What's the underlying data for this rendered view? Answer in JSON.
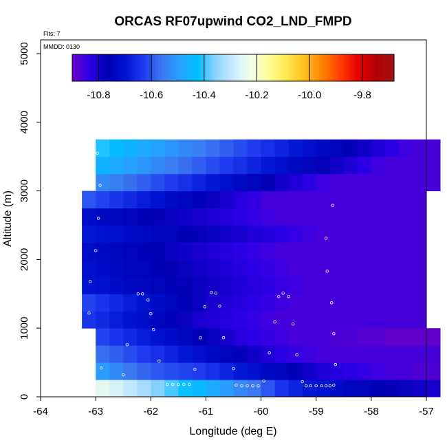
{
  "chart_data": {
    "type": "heatmap",
    "title": "ORCAS RF07upwind CO2_LND_FMPD",
    "annotations": {
      "flights": "Flts: 7",
      "date": "MMDD: 0130"
    },
    "xlabel": "Longitude (deg E)",
    "ylabel": "Altitude (m)",
    "xlim": [
      -64,
      -57
    ],
    "ylim": [
      0,
      5200
    ],
    "x_ticks": [
      -64,
      -63,
      -62,
      -61,
      -60,
      -59,
      -58,
      -57
    ],
    "x_tick_labels": [
      "-64",
      "-63",
      "-62",
      "-61",
      "-60",
      "-59",
      "-58",
      "-57"
    ],
    "y_ticks": [
      0,
      1000,
      2000,
      3000,
      4000,
      5000
    ],
    "y_tick_labels": [
      "0",
      "1000",
      "2000",
      "3000",
      "4000",
      "5000"
    ],
    "colorbar": {
      "vmin": -10.9,
      "vmax": -9.68,
      "ticks": [
        -10.8,
        -10.6,
        -10.4,
        -10.2,
        -10.0,
        -9.8
      ],
      "tick_labels": [
        "-10.8",
        "-10.6",
        "-10.4",
        "-10.2",
        "-10.0",
        "-9.8"
      ],
      "colors": [
        "#6a00c8",
        "#2d00e6",
        "#0000b4",
        "#0014d2",
        "#1e3cf0",
        "#3c78f0",
        "#28a0ff",
        "#00beff",
        "#8cd2ff",
        "#c8ebff",
        "#f5ffe6",
        "#ffff96",
        "#ffe650",
        "#ffbe1e",
        "#ff8200",
        "#ff3c00",
        "#e60000",
        "#b40000",
        "#a01414"
      ]
    },
    "grid": {
      "x_start": -63.25,
      "x_step": 0.25,
      "y_start": 0,
      "y_step": 250,
      "row_x_ranges": [
        [
          -63.0,
          -62.5
        ],
        [
          -63.0,
          -62.5
        ],
        [
          -63.0,
          -62.5
        ],
        [
          -63.0,
          -62.5
        ],
        [
          -63.25,
          -62.5
        ],
        [
          -63.25,
          -62.5
        ],
        [
          -63.25,
          -62.5
        ],
        [
          -63.25,
          -62.5
        ],
        [
          -63.25,
          -62.5
        ],
        [
          -63.25,
          -62.5
        ],
        [
          -63.25,
          -62.5
        ],
        [
          -63.25,
          -62.5
        ],
        [
          -63.0,
          -62.5
        ],
        [
          -63.0,
          -62.5
        ],
        [
          -63.0,
          -62.5
        ]
      ],
      "rows": [
        [
          -10.25,
          -10.27,
          -10.3,
          -10.33,
          -10.36,
          -10.39,
          -10.42,
          -10.44,
          -10.47,
          -10.5,
          -10.53,
          -10.56,
          -10.6,
          -10.64,
          -10.67,
          -10.69,
          -10.7,
          -10.72,
          -10.74,
          -10.75,
          -10.76,
          -10.77,
          -10.78,
          -10.79,
          -10.8
        ],
        [
          -10.5,
          -10.53,
          -10.56,
          -10.58,
          -10.6,
          -10.61,
          -10.62,
          -10.63,
          -10.65,
          -10.67,
          -10.69,
          -10.71,
          -10.73,
          -10.75,
          -10.77,
          -10.79,
          -10.81,
          -10.82,
          -10.83,
          -10.84,
          -10.85,
          -10.86,
          -10.86,
          -10.87,
          -10.87
        ],
        [
          -10.57,
          -10.59,
          -10.61,
          -10.63,
          -10.65,
          -10.67,
          -10.69,
          -10.71,
          -10.73,
          -10.75,
          -10.77,
          -10.79,
          -10.81,
          -10.83,
          -10.84,
          -10.85,
          -10.86,
          -10.86,
          -10.86,
          -10.86,
          -10.86,
          -10.86,
          -10.86,
          -10.86,
          -10.86
        ],
        [
          -10.62,
          -10.64,
          -10.66,
          -10.68,
          -10.7,
          -10.72,
          -10.74,
          -10.76,
          -10.78,
          -10.8,
          -10.82,
          -10.83,
          -10.84,
          -10.85,
          -10.86,
          -10.86,
          -10.86,
          -10.87,
          -10.87,
          -10.88,
          -10.88,
          -10.89,
          -10.89,
          -10.89,
          -10.89
        ],
        [
          -10.64,
          -10.66,
          -10.68,
          -10.7,
          -10.72,
          -10.74,
          -10.76,
          -10.78,
          -10.8,
          -10.81,
          -10.82,
          -10.83,
          -10.84,
          -10.85,
          -10.86,
          -10.86,
          -10.86,
          -10.86,
          -10.86,
          -10.86,
          -10.86,
          -10.86,
          -10.86,
          -10.86,
          -10.86
        ],
        [
          -10.62,
          -10.64,
          -10.66,
          -10.68,
          -10.7,
          -10.72,
          -10.74,
          -10.76,
          -10.78,
          -10.8,
          -10.81,
          -10.82,
          -10.83,
          -10.84,
          -10.85,
          -10.86,
          -10.86,
          -10.86,
          -10.86,
          -10.86,
          -10.86,
          -10.86,
          -10.86,
          -10.86,
          -10.86
        ],
        [
          -10.7,
          -10.71,
          -10.72,
          -10.73,
          -10.74,
          -10.75,
          -10.76,
          -10.77,
          -10.78,
          -10.79,
          -10.8,
          -10.81,
          -10.82,
          -10.83,
          -10.84,
          -10.85,
          -10.86,
          -10.86,
          -10.86,
          -10.86,
          -10.86,
          -10.86,
          -10.86,
          -10.86,
          -10.86
        ],
        [
          -10.71,
          -10.72,
          -10.73,
          -10.74,
          -10.75,
          -10.76,
          -10.77,
          -10.78,
          -10.79,
          -10.8,
          -10.81,
          -10.82,
          -10.83,
          -10.84,
          -10.85,
          -10.86,
          -10.86,
          -10.86,
          -10.86,
          -10.86,
          -10.86,
          -10.86,
          -10.86,
          -10.86,
          -10.86
        ],
        [
          -10.72,
          -10.73,
          -10.74,
          -10.75,
          -10.76,
          -10.77,
          -10.78,
          -10.79,
          -10.8,
          -10.81,
          -10.82,
          -10.83,
          -10.84,
          -10.85,
          -10.86,
          -10.86,
          -10.86,
          -10.86,
          -10.86,
          -10.86,
          -10.86,
          -10.86,
          -10.86,
          -10.86,
          -10.86
        ],
        [
          -10.69,
          -10.7,
          -10.71,
          -10.72,
          -10.73,
          -10.74,
          -10.75,
          -10.76,
          -10.77,
          -10.78,
          -10.79,
          -10.8,
          -10.81,
          -10.82,
          -10.83,
          -10.84,
          -10.85,
          -10.86,
          -10.86,
          -10.86,
          -10.86,
          -10.86,
          -10.86,
          -10.86,
          -10.86
        ],
        [
          -10.72,
          -10.73,
          -10.74,
          -10.75,
          -10.76,
          -10.77,
          -10.78,
          -10.79,
          -10.8,
          -10.81,
          -10.82,
          -10.83,
          -10.84,
          -10.85,
          -10.86,
          -10.86,
          -10.86,
          -10.86,
          -10.86,
          -10.86,
          -10.86,
          -10.86,
          -10.86,
          -10.86,
          -10.86
        ],
        [
          -10.6,
          -10.62,
          -10.64,
          -10.66,
          -10.68,
          -10.7,
          -10.72,
          -10.74,
          -10.76,
          -10.78,
          -10.8,
          -10.82,
          -10.84,
          -10.86,
          -10.86,
          -10.86,
          -10.86,
          -10.86,
          -10.86,
          -10.86,
          -10.86,
          -10.86,
          -10.86,
          -10.86,
          -10.86
        ],
        [
          -10.53,
          -10.55,
          -10.57,
          -10.59,
          -10.61,
          -10.63,
          -10.65,
          -10.67,
          -10.69,
          -10.71,
          -10.73,
          -10.75,
          -10.77,
          -10.79,
          -10.81,
          -10.83,
          -10.85,
          -10.86,
          -10.86,
          -10.86,
          -10.86,
          -10.86,
          -10.86,
          -10.86,
          -10.86
        ],
        [
          -10.45,
          -10.47,
          -10.49,
          -10.51,
          -10.53,
          -10.55,
          -10.57,
          -10.59,
          -10.61,
          -10.63,
          -10.65,
          -10.67,
          -10.69,
          -10.71,
          -10.73,
          -10.75,
          -10.77,
          -10.79,
          -10.81,
          -10.83,
          -10.85,
          -10.86,
          -10.86,
          -10.86,
          -10.86
        ],
        [
          -10.41,
          -10.43,
          -10.45,
          -10.47,
          -10.49,
          -10.51,
          -10.53,
          -10.55,
          -10.57,
          -10.59,
          -10.61,
          -10.63,
          -10.65,
          -10.67,
          -10.69,
          -10.71,
          -10.73,
          -10.75,
          -10.77,
          -10.79,
          -10.81,
          -10.83,
          -10.85,
          -10.86,
          -10.86
        ]
      ]
    },
    "sample_points": [
      [
        -62.97,
        3550
      ],
      [
        -62.92,
        3080
      ],
      [
        -62.95,
        2600
      ],
      [
        -63.0,
        2130
      ],
      [
        -63.1,
        1680
      ],
      [
        -63.12,
        1220
      ],
      [
        -63.08,
        770
      ],
      [
        -62.9,
        420
      ],
      [
        -62.5,
        320
      ],
      [
        -62.43,
        760
      ],
      [
        -62.23,
        1500
      ],
      [
        -62.15,
        1500
      ],
      [
        -62.05,
        1410
      ],
      [
        -62.0,
        1210
      ],
      [
        -61.95,
        980
      ],
      [
        -61.85,
        520
      ],
      [
        -61.7,
        180
      ],
      [
        -61.6,
        180
      ],
      [
        -61.5,
        180
      ],
      [
        -61.4,
        180
      ],
      [
        -61.3,
        180
      ],
      [
        -61.2,
        400
      ],
      [
        -61.1,
        860
      ],
      [
        -61.02,
        1310
      ],
      [
        -60.9,
        1520
      ],
      [
        -60.82,
        1510
      ],
      [
        -60.75,
        1320
      ],
      [
        -60.68,
        860
      ],
      [
        -60.5,
        410
      ],
      [
        -60.45,
        170
      ],
      [
        -60.35,
        160
      ],
      [
        -60.25,
        160
      ],
      [
        -60.15,
        160
      ],
      [
        -60.05,
        160
      ],
      [
        -59.95,
        230
      ],
      [
        -59.85,
        640
      ],
      [
        -59.75,
        1090
      ],
      [
        -59.68,
        1460
      ],
      [
        -59.6,
        1510
      ],
      [
        -59.5,
        1460
      ],
      [
        -59.42,
        1060
      ],
      [
        -59.35,
        610
      ],
      [
        -59.25,
        220
      ],
      [
        -59.18,
        160
      ],
      [
        -59.1,
        160
      ],
      [
        -59.0,
        160
      ],
      [
        -58.9,
        160
      ],
      [
        -58.82,
        160
      ],
      [
        -58.75,
        160
      ],
      [
        -58.68,
        170
      ],
      [
        -58.65,
        470
      ],
      [
        -58.68,
        920
      ],
      [
        -58.72,
        1370
      ],
      [
        -58.8,
        1830
      ],
      [
        -58.82,
        2310
      ],
      [
        -58.7,
        2790
      ]
    ]
  }
}
